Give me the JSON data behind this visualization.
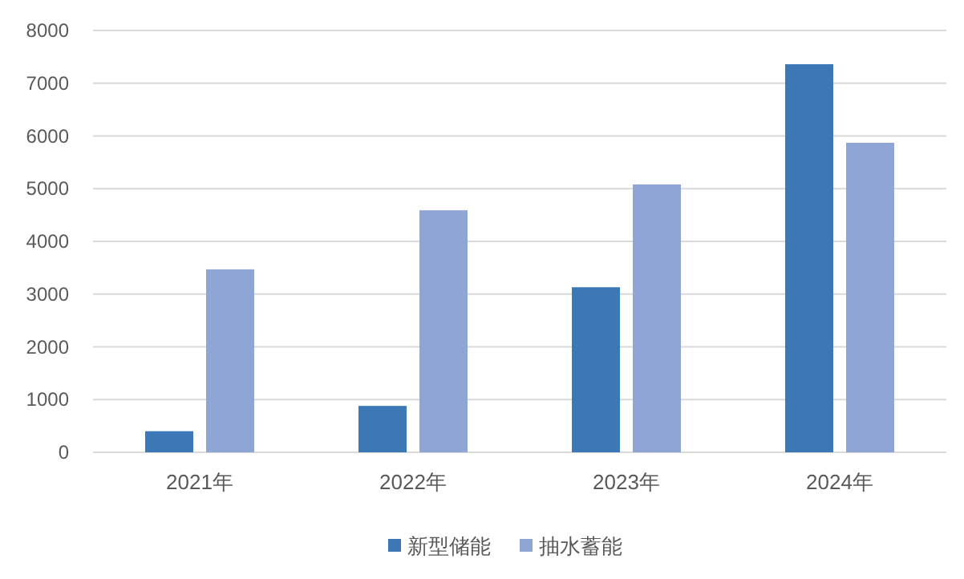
{
  "chart_data": {
    "type": "bar",
    "categories": [
      "2021年",
      "2022年",
      "2023年",
      "2024年"
    ],
    "series": [
      {
        "name": "新型储能",
        "color": "#3d78b6",
        "values": [
          400,
          880,
          3130,
          7360
        ]
      },
      {
        "name": "抽水蓄能",
        "color": "#8fa5d6",
        "values": [
          3470,
          4590,
          5080,
          5870
        ]
      }
    ],
    "ylim": [
      0,
      8000
    ],
    "yticks": [
      0,
      1000,
      2000,
      3000,
      4000,
      5000,
      6000,
      7000,
      8000
    ],
    "grid": "y",
    "legend": "bottom"
  }
}
